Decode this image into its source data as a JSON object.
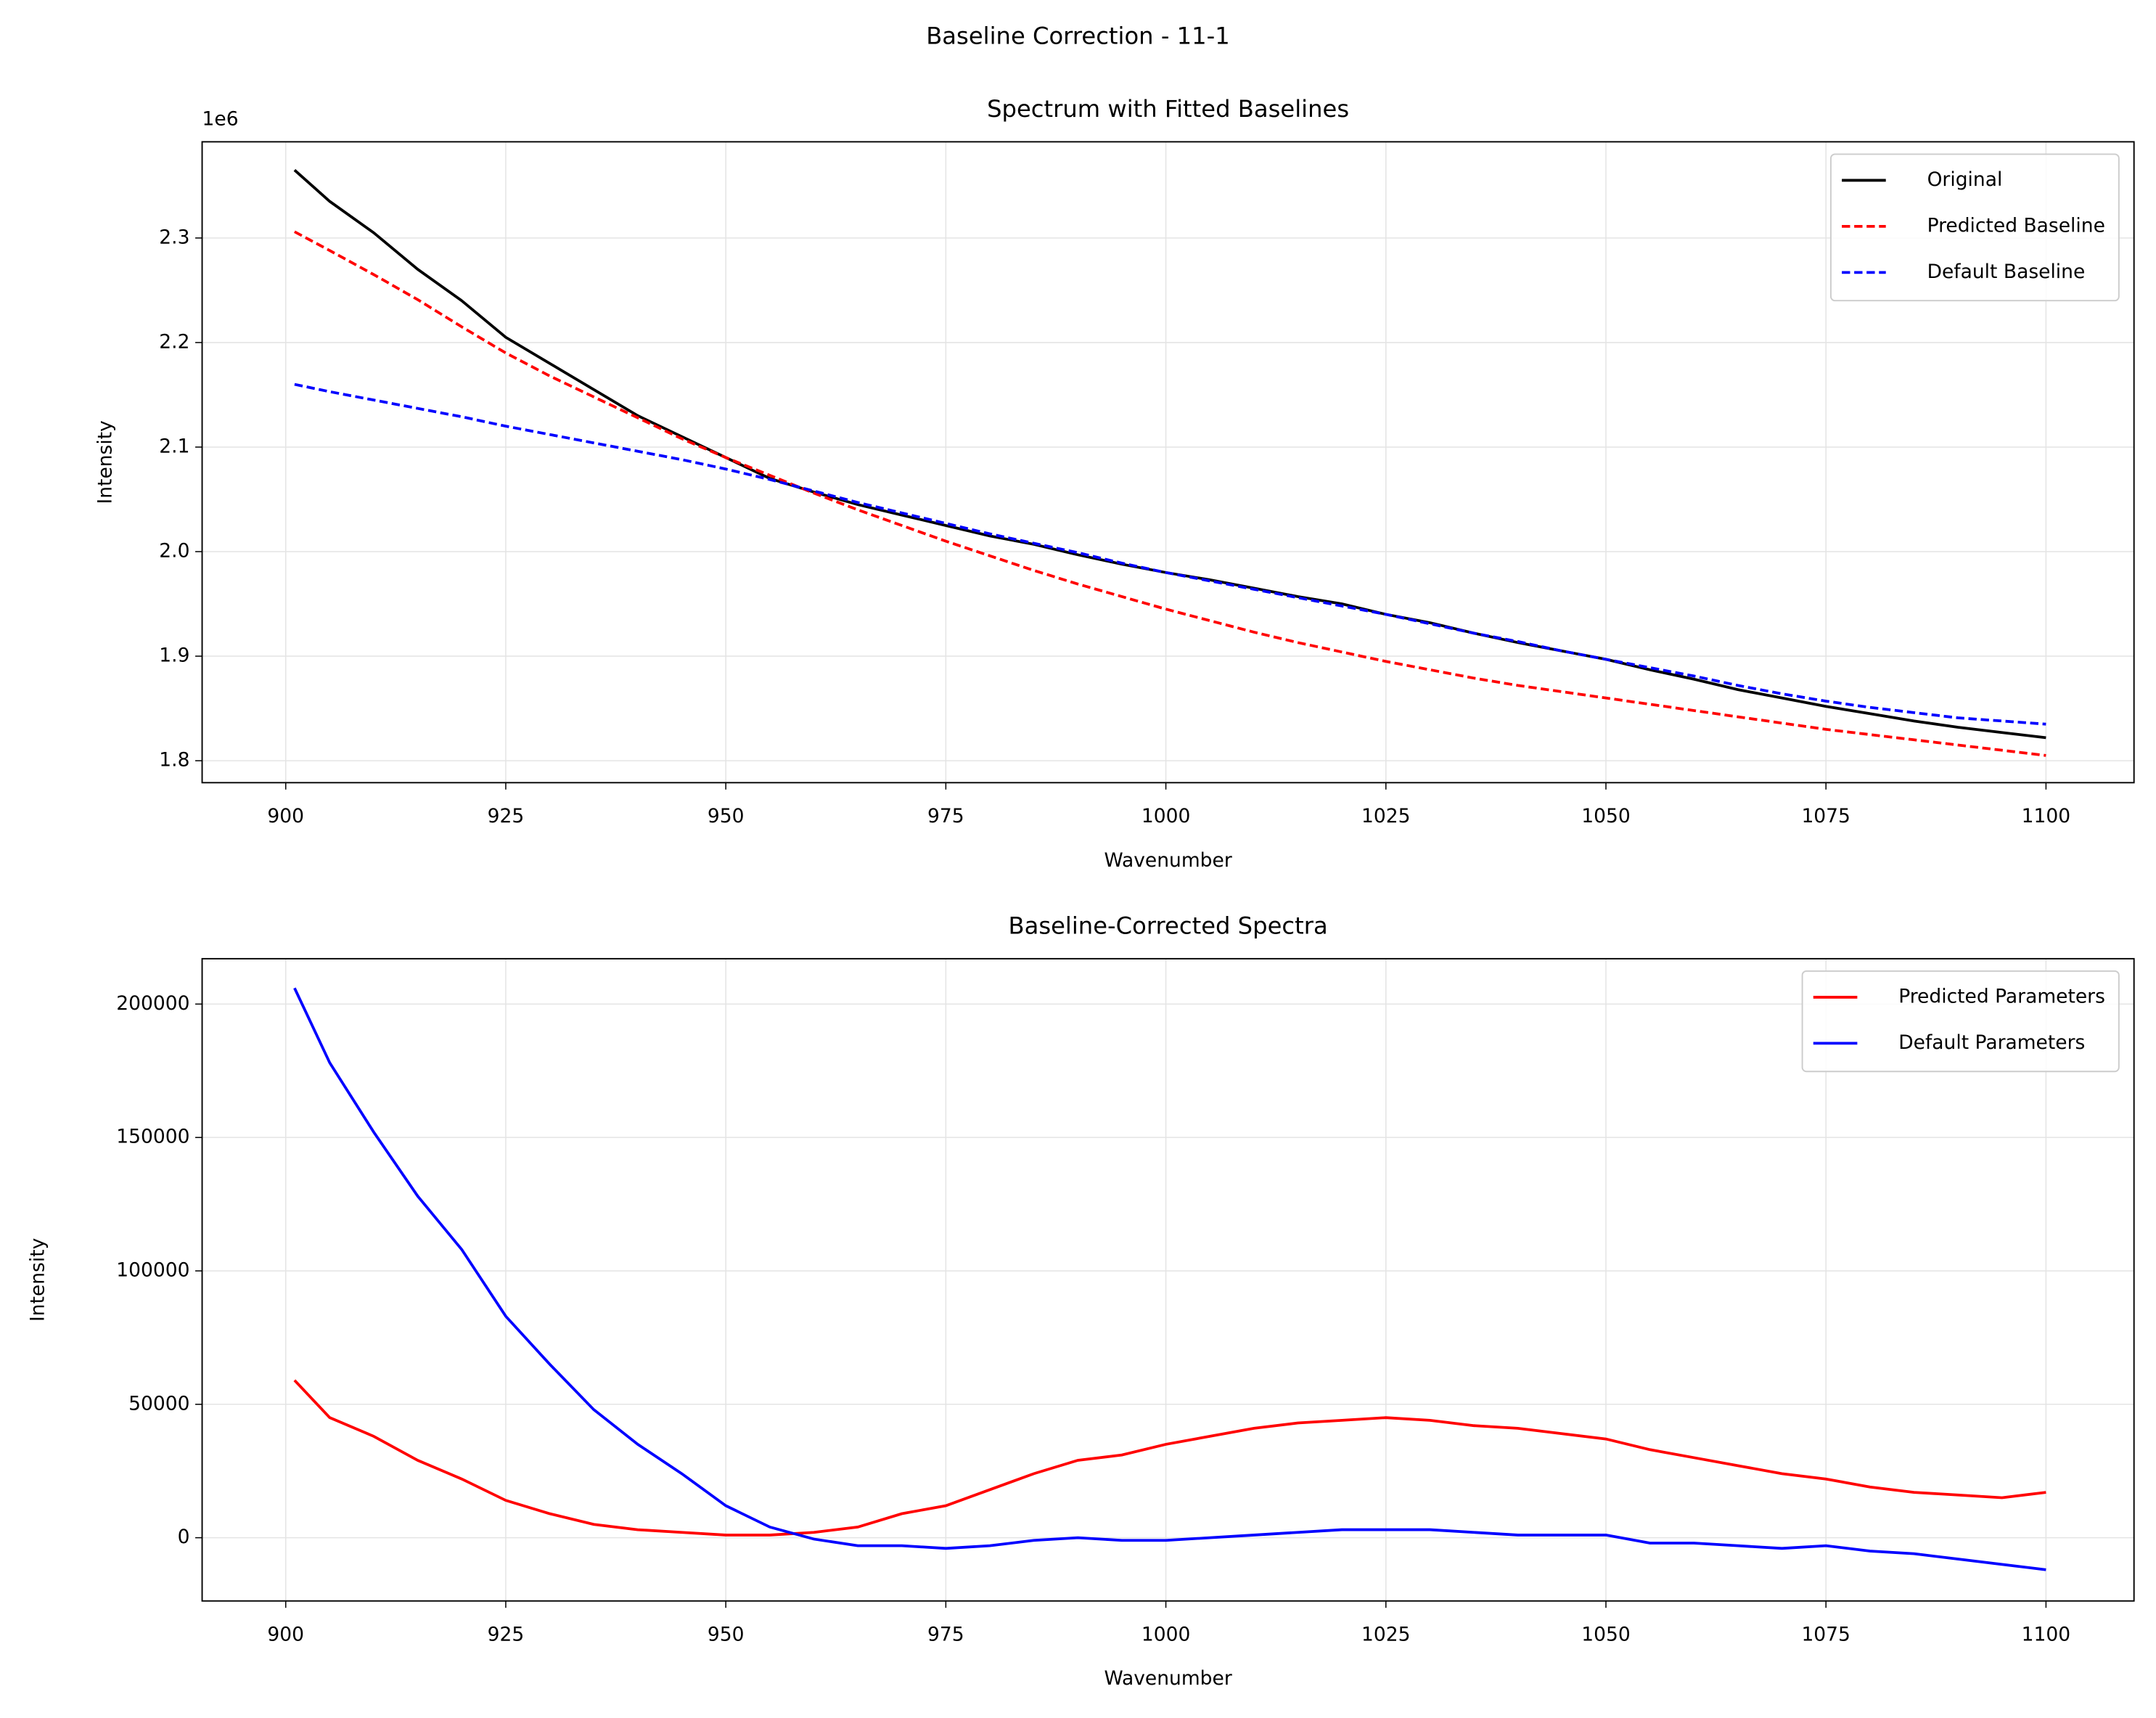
{
  "title": "Baseline Correction - 11-1",
  "chart_data": [
    {
      "type": "line",
      "title": "Spectrum with Fitted Baselines",
      "xlabel": "Wavenumber",
      "ylabel": "Intensity",
      "y_offset_text": "1e6",
      "x": [
        901,
        905,
        910,
        915,
        920,
        925,
        930,
        935,
        940,
        945,
        950,
        955,
        960,
        965,
        970,
        975,
        980,
        985,
        990,
        995,
        1000,
        1005,
        1010,
        1015,
        1020,
        1025,
        1030,
        1035,
        1040,
        1045,
        1050,
        1055,
        1060,
        1065,
        1070,
        1075,
        1080,
        1085,
        1090,
        1095,
        1100
      ],
      "series": [
        {
          "name": "Original",
          "color": "#000000",
          "linestyle": "solid",
          "values": [
            2.365,
            2.335,
            2.305,
            2.27,
            2.24,
            2.205,
            2.18,
            2.155,
            2.13,
            2.11,
            2.09,
            2.07,
            2.057,
            2.045,
            2.035,
            2.025,
            2.015,
            2.007,
            1.997,
            1.988,
            1.98,
            1.973,
            1.965,
            1.957,
            1.95,
            1.94,
            1.932,
            1.922,
            1.913,
            1.905,
            1.897,
            1.887,
            1.878,
            1.868,
            1.86,
            1.852,
            1.845,
            1.838,
            1.832,
            1.827,
            1.822
          ]
        },
        {
          "name": "Predicted Baseline",
          "color": "#ff0000",
          "linestyle": "dashed",
          "values": [
            2.306,
            2.288,
            2.265,
            2.241,
            2.215,
            2.19,
            2.168,
            2.148,
            2.128,
            2.108,
            2.09,
            2.073,
            2.056,
            2.04,
            2.025,
            2.01,
            1.996,
            1.982,
            1.969,
            1.957,
            1.945,
            1.934,
            1.923,
            1.913,
            1.904,
            1.895,
            1.887,
            1.879,
            1.872,
            1.866,
            1.86,
            1.854,
            1.848,
            1.842,
            1.836,
            1.83,
            1.825,
            1.82,
            1.815,
            1.81,
            1.805
          ]
        },
        {
          "name": "Default Baseline",
          "color": "#0000ff",
          "linestyle": "dashed",
          "values": [
            2.16,
            2.153,
            2.145,
            2.137,
            2.129,
            2.12,
            2.112,
            2.104,
            2.096,
            2.088,
            2.079,
            2.069,
            2.058,
            2.047,
            2.037,
            2.027,
            2.017,
            2.008,
            1.999,
            1.989,
            1.98,
            1.972,
            1.964,
            1.956,
            1.948,
            1.94,
            1.931,
            1.922,
            1.914,
            1.905,
            1.897,
            1.889,
            1.881,
            1.872,
            1.864,
            1.857,
            1.851,
            1.846,
            1.841,
            1.838,
            1.835
          ]
        }
      ],
      "xlim": [
        890.5,
        1110
      ],
      "ylim": [
        1.779,
        2.392
      ],
      "xticks": [
        900,
        925,
        950,
        975,
        1000,
        1025,
        1050,
        1075,
        1100
      ],
      "yticks": [
        1.8,
        1.9,
        {
          "value": 2,
          "label": "2.0"
        },
        2.1,
        2.2,
        2.3
      ],
      "grid": true,
      "legend": "upper right"
    },
    {
      "type": "line",
      "title": "Baseline-Corrected Spectra",
      "xlabel": "Wavenumber",
      "ylabel": "Intensity",
      "x": [
        901,
        905,
        910,
        915,
        920,
        925,
        930,
        935,
        940,
        945,
        950,
        955,
        960,
        965,
        970,
        975,
        980,
        985,
        990,
        995,
        1000,
        1005,
        1010,
        1015,
        1020,
        1025,
        1030,
        1035,
        1040,
        1045,
        1050,
        1055,
        1060,
        1065,
        1070,
        1075,
        1080,
        1085,
        1090,
        1095,
        1100
      ],
      "series": [
        {
          "name": "Predicted Parameters",
          "color": "#ff0000",
          "linestyle": "solid",
          "values": [
            59000,
            45000,
            38000,
            29000,
            22000,
            14000,
            9000,
            5000,
            3000,
            2000,
            1000,
            1000,
            2000,
            4000,
            9000,
            12000,
            18000,
            24000,
            29000,
            31000,
            35000,
            38000,
            41000,
            43000,
            44000,
            45000,
            44000,
            42000,
            41000,
            39000,
            37000,
            33000,
            30000,
            27000,
            24000,
            22000,
            19000,
            17000,
            16000,
            15000,
            17000
          ]
        },
        {
          "name": "Default Parameters",
          "color": "#0000ff",
          "linestyle": "solid",
          "values": [
            206000,
            178000,
            152000,
            128000,
            108000,
            83000,
            65000,
            48000,
            35000,
            24000,
            12000,
            4000,
            -500,
            -3000,
            -3000,
            -4000,
            -3000,
            -1000,
            0,
            -1000,
            -1000,
            0,
            1000,
            2000,
            3000,
            3000,
            3000,
            2000,
            1000,
            1000,
            1000,
            -2000,
            -2000,
            -3000,
            -4000,
            -3000,
            -5000,
            -6000,
            -8000,
            -10000,
            -12000
          ]
        }
      ],
      "xlim": [
        890.5,
        1110
      ],
      "ylim": [
        -23700,
        217000
      ],
      "xticks": [
        900,
        925,
        950,
        975,
        1000,
        1025,
        1050,
        1075,
        1100
      ],
      "yticks": [
        0,
        50000,
        100000,
        150000,
        200000
      ],
      "grid": true,
      "legend": "upper right"
    }
  ]
}
